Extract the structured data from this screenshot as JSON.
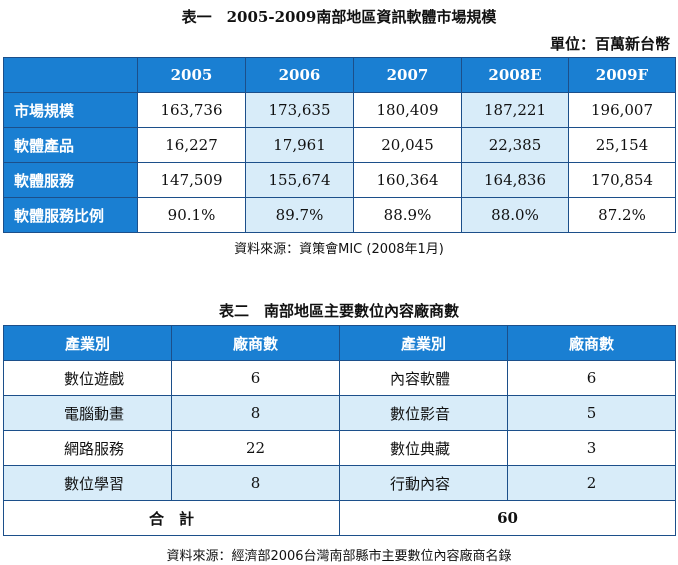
{
  "table1": {
    "title": "表一　2005-2009南部地區資訊軟體市場規模",
    "unit": "單位：百萬新台幣",
    "headers": [
      "",
      "2005",
      "2006",
      "2007",
      "2008E",
      "2009F"
    ],
    "rows": [
      {
        "label": "市場規模",
        "values": [
          "163,736",
          "173,635",
          "180,409",
          "187,221",
          "196,007"
        ]
      },
      {
        "label": "軟體產品",
        "values": [
          "16,227",
          "17,961",
          "20,045",
          "22,385",
          "25,154"
        ]
      },
      {
        "label": "軟體服務",
        "values": [
          "147,509",
          "155,674",
          "160,364",
          "164,836",
          "170,854"
        ]
      },
      {
        "label": "軟體服務比例",
        "values": [
          "90.1%",
          "89.7%",
          "88.9%",
          "88.0%",
          "87.2%"
        ]
      }
    ],
    "source": "資料來源：資策會MIC (2008年1月)"
  },
  "table2": {
    "title": "表二　南部地區主要數位內容廠商數",
    "headers": [
      "產業別",
      "廠商數",
      "產業別",
      "廠商數"
    ],
    "rows": [
      {
        "industry1": "數位遊戲",
        "count1": "6",
        "industry2": "內容軟體",
        "count2": "6"
      },
      {
        "industry1": "電腦動畫",
        "count1": "8",
        "industry2": "數位影音",
        "count2": "5"
      },
      {
        "industry1": "網路服務",
        "count1": "22",
        "industry2": "數位典藏",
        "count2": "3"
      },
      {
        "industry1": "數位學習",
        "count1": "8",
        "industry2": "行動內容",
        "count2": "2"
      }
    ],
    "total_label": "合　計",
    "total_value": "60",
    "source": "資料來源：經濟部2006台灣南部縣市主要數位內容廠商名錄"
  },
  "colors": {
    "header_blue": "#1a7fd2",
    "shade_light_blue": "#d8ecf9",
    "border": "#1c4f8a"
  }
}
